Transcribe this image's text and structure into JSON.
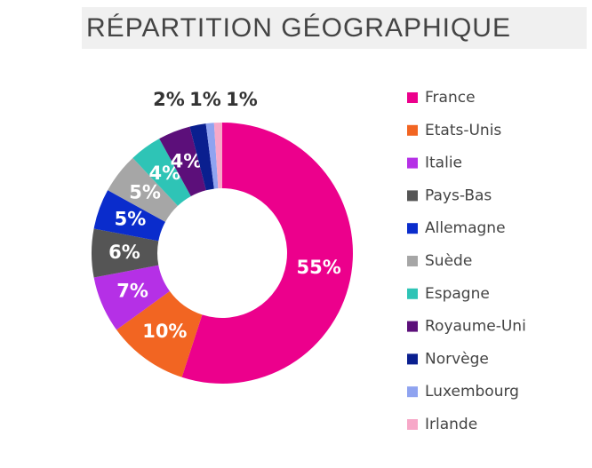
{
  "chart_data": {
    "type": "donut",
    "title": "RÉPARTITION GÉOGRAPHIQUE",
    "categories": [
      "France",
      "Etats-Unis",
      "Italie",
      "Pays-Bas",
      "Allemagne",
      "Suède",
      "Espagne",
      "Royaume-Uni",
      "Norvège",
      "Luxembourg",
      "Irlande"
    ],
    "values": [
      55,
      10,
      7,
      6,
      5,
      5,
      4,
      4,
      2,
      1,
      1
    ],
    "value_labels": [
      "55%",
      "10%",
      "7%",
      "6%",
      "5%",
      "5%",
      "4%",
      "4%",
      "2%",
      "1%",
      "1%"
    ],
    "colors": [
      "#ec008c",
      "#f26522",
      "#b530e6",
      "#555555",
      "#0a2ccc",
      "#a6a6a6",
      "#2ec4b6",
      "#5c0f7a",
      "#0a1f8f",
      "#8fa3f0",
      "#f7a8c8"
    ],
    "legend": "right"
  }
}
